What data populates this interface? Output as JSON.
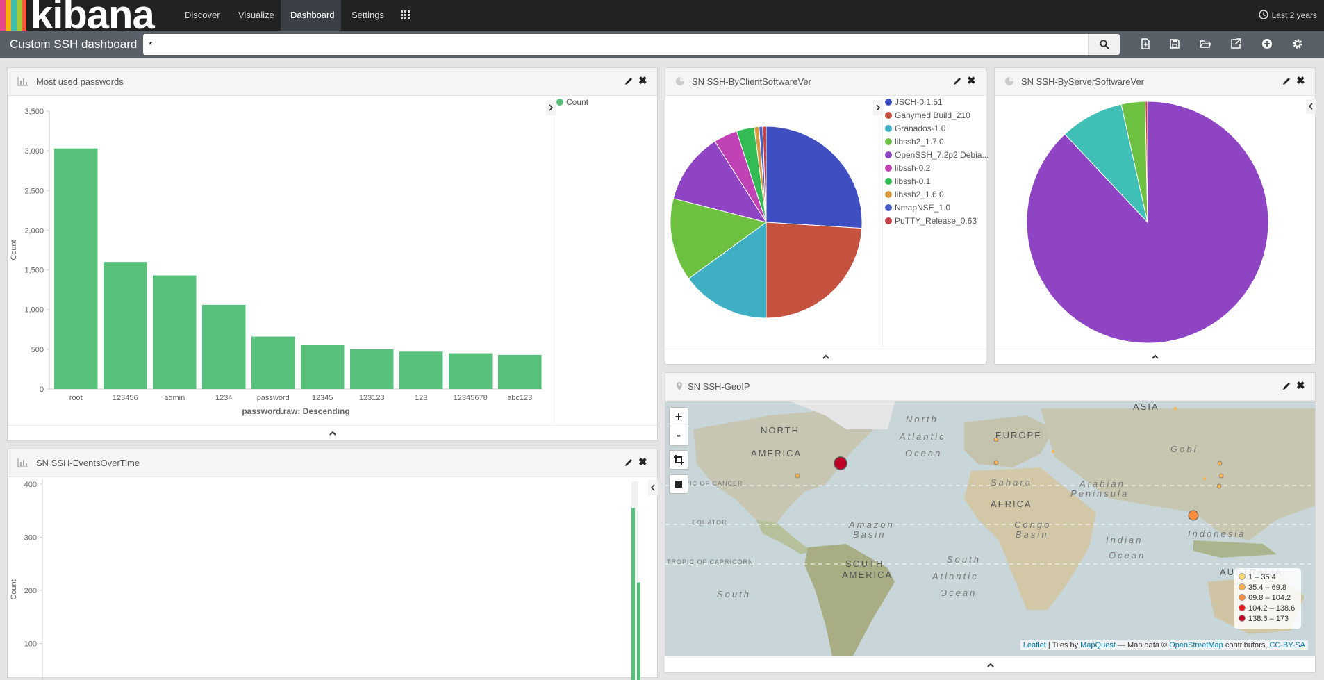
{
  "nav": {
    "logo_text": "kibana",
    "tabs": [
      {
        "label": "Discover"
      },
      {
        "label": "Visualize"
      },
      {
        "label": "Dashboard",
        "active": true
      },
      {
        "label": "Settings"
      }
    ],
    "time_range": "Last 2 years"
  },
  "dashboard": {
    "title": "Custom SSH dashboard",
    "query": "*"
  },
  "panels": {
    "passwords": {
      "title": "Most used passwords",
      "legend_label": "Count",
      "chart_data": {
        "type": "bar",
        "categories": [
          "root",
          "123456",
          "admin",
          "1234",
          "password",
          "12345",
          "123123",
          "123",
          "12345678",
          "abc123"
        ],
        "values": [
          3030,
          1600,
          1430,
          1060,
          660,
          560,
          500,
          470,
          450,
          430
        ],
        "xlabel": "password.raw: Descending",
        "ylabel": "Count",
        "ylim": [
          0,
          3500
        ],
        "yticks": [
          "0",
          "500",
          "1,000",
          "1,500",
          "2,000",
          "2,500",
          "3,000",
          "3,500"
        ],
        "color": "#57c17b"
      }
    },
    "client": {
      "title": "SN SSH-ByClientSoftwareVer",
      "chart_data": {
        "type": "pie",
        "labels": [
          "JSCH-0.1.51",
          "Ganymed Build_210",
          "Granados-1.0",
          "libssh2_1.7.0",
          "OpenSSH_7.2p2 Debia...",
          "libssh-0.2",
          "libssh-0.1",
          "libssh2_1.6.0",
          "NmapNSE_1.0",
          "PuTTY_Release_0.63"
        ],
        "values": [
          26,
          24,
          15,
          14,
          12,
          4,
          3,
          0.8,
          0.6,
          0.6
        ],
        "colors": [
          "#3f4fc1",
          "#c5513f",
          "#3fb0c3",
          "#6ec040",
          "#8e44c3",
          "#c042b5",
          "#33bb55",
          "#d99a40",
          "#4a60c8",
          "#c8404a"
        ]
      }
    },
    "server": {
      "title": "SN SSH-ByServerSoftwareVer",
      "chart_data": {
        "type": "pie",
        "values": [
          88,
          8.5,
          3.2,
          0.3
        ],
        "colors": [
          "#8e44c3",
          "#3fbfb5",
          "#6ec040",
          "#c8404a"
        ]
      }
    },
    "events": {
      "title": "SN SSH-EventsOverTime",
      "chart_data": {
        "type": "bar",
        "values": [
          355,
          215
        ],
        "ylabel": "Count",
        "ylim": [
          0,
          400
        ],
        "yticks": [
          "100",
          "200",
          "300",
          "400"
        ],
        "color": "#57c17b"
      }
    },
    "geo": {
      "title": "SN SSH-GeoIP",
      "zoom_in": "+",
      "zoom_out": "-",
      "labels": {
        "north": "NORTH",
        "america": "AMERICA",
        "south": "SOUTH",
        "samerica": "AMERICA",
        "europe": "EUROPE",
        "asia": "ASIA",
        "africa": "AFRICA",
        "australia": "AUSTRALIA",
        "gobi": "Gobi",
        "sahara": "Sahara",
        "arabian": "Arabian",
        "peninsula": "Peninsula",
        "amazon": "Amazon",
        "basin": "Basin",
        "congo": "Congo",
        "cbasin": "Basin",
        "indonesia": "Indonesia",
        "indian": "Indian",
        "iocean": "Ocean",
        "natl1": "North",
        "natl2": "Atlantic",
        "natl3": "Ocean",
        "satl1": "South",
        "satl2": "Atlantic",
        "satl3": "Ocean",
        "spac": "South",
        "cancer": "TROPIC OF CANCER",
        "equator": "EQUATOR",
        "capricorn": "TROPIC OF CAPRICORN"
      },
      "legend": [
        "1 – 35.4",
        "35.4 – 69.8",
        "69.8 – 104.2",
        "104.2 – 138.6",
        "138.6 – 173"
      ],
      "legend_colors": [
        "#fed976",
        "#feb24c",
        "#fd8d3c",
        "#e31a1c",
        "#bd0026"
      ],
      "attribution": {
        "leaflet": "Leaflet",
        "tiles": "| Tiles by",
        "mapquest": "MapQuest",
        "mapdata": "— Map data ©",
        "osm": "OpenStreetMap",
        "contrib": "contributors,",
        "license": "CC-BY-SA"
      }
    }
  }
}
